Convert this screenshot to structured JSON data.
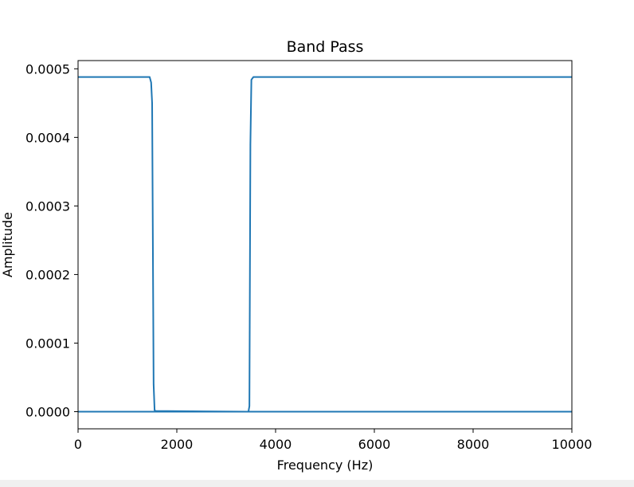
{
  "chart_data": {
    "type": "line",
    "title": "Band Pass",
    "xlabel": "Frequency (Hz)",
    "ylabel": "Amplitude",
    "xlim": [
      0,
      10000
    ],
    "ylim": [
      -2.5e-05,
      0.000512
    ],
    "xticks": [
      0,
      2000,
      4000,
      6000,
      8000,
      10000
    ],
    "xtick_labels": [
      "0",
      "2000",
      "4000",
      "6000",
      "8000",
      "10000"
    ],
    "yticks": [
      0.0,
      0.0001,
      0.0002,
      0.0003,
      0.0004,
      0.0005
    ],
    "ytick_labels": [
      "0.0000",
      "0.0001",
      "0.0002",
      "0.0003",
      "0.0004",
      "0.0005"
    ],
    "grid": false,
    "legend": "none",
    "line_color": "#1f77b4",
    "series": [
      {
        "x": [
          0,
          1450,
          1480,
          1500,
          1530,
          1550,
          1580,
          3400,
          3450,
          3470,
          3490,
          3510,
          3550,
          10000
        ],
        "y": [
          0.000488,
          0.000488,
          0.00048,
          0.00045,
          4e-05,
          2e-06,
          1e-06,
          0.0,
          0.0,
          8e-06,
          0.00039,
          0.000484,
          0.000488,
          0.000488
        ]
      },
      {
        "x": [
          0,
          10000
        ],
        "y": [
          0.0,
          0.0
        ]
      }
    ]
  }
}
